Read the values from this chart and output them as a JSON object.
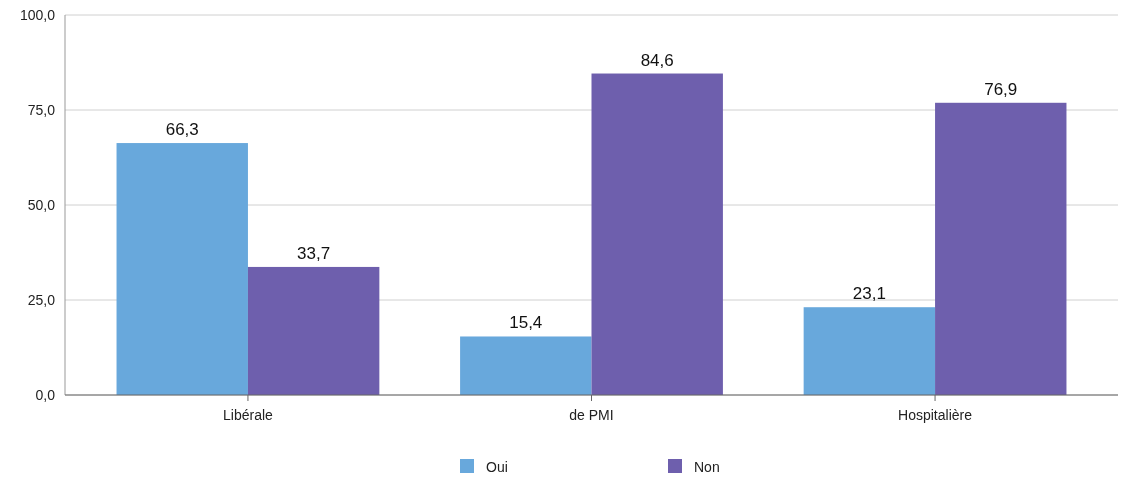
{
  "chart_data": {
    "type": "bar",
    "categories": [
      "Libérale",
      "de PMI",
      "Hospitalière"
    ],
    "series": [
      {
        "name": "Oui",
        "color": "#68a8dc",
        "values": [
          66.3,
          15.4,
          23.1
        ],
        "value_labels": [
          "66,3",
          "15,4",
          "23,1"
        ]
      },
      {
        "name": "Non",
        "color": "#6e5fad",
        "values": [
          33.7,
          84.6,
          76.9
        ],
        "value_labels": [
          "33,7",
          "84,6",
          "76,9"
        ]
      }
    ],
    "ylim": [
      0,
      100
    ],
    "yticks": [
      {
        "value": 0,
        "label": "0,0"
      },
      {
        "value": 25,
        "label": "25,0"
      },
      {
        "value": 50,
        "label": "50,0"
      },
      {
        "value": 75,
        "label": "75,0"
      },
      {
        "value": 100,
        "label": "100,0"
      }
    ],
    "grid": "y",
    "legend": "bottom"
  }
}
